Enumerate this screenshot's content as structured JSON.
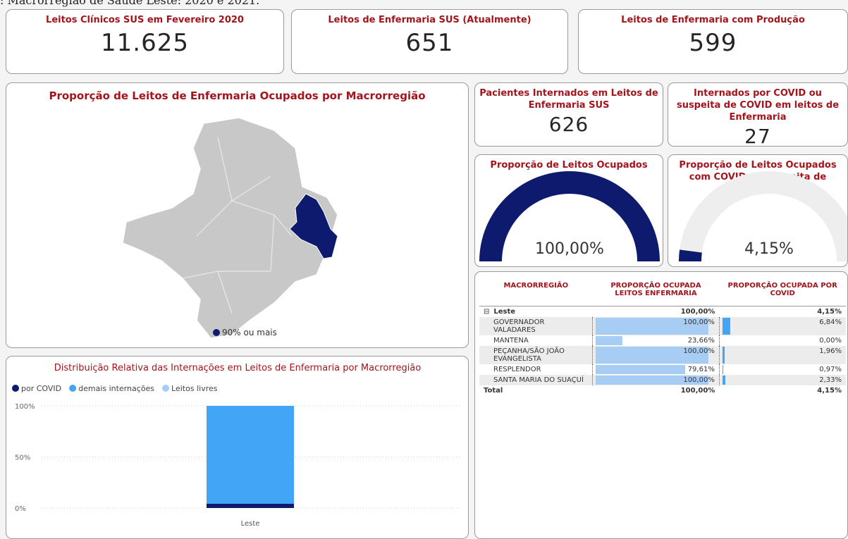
{
  "caption": ": Macrorregião de Saúde Leste: 2020 e 2021.",
  "cards": [
    {
      "title": "Leitos Clínicos SUS em Fevereiro 2020",
      "value": "11.625"
    },
    {
      "title": "Leitos de Enfermaria SUS (Atualmente)",
      "value": "651"
    },
    {
      "title": "Leitos de Enfermaria com Produção",
      "value": "599"
    },
    {
      "title": "Pacientes Internados em Leitos de Enfermaria SUS",
      "value": "626"
    },
    {
      "title": "Internados por COVID ou suspeita de COVID em leitos de Enfermaria",
      "value": "27"
    }
  ],
  "map": {
    "title": "Proporção de Leitos de Enfermaria Ocupados por Macrorregião",
    "legend": "90% ou mais",
    "color": "#0d1a6e"
  },
  "chart_data": [
    {
      "type": "gauge",
      "title": "Proporção de Leitos Ocupados",
      "value": 100,
      "value_label": "100,00%",
      "range": [
        0,
        100
      ],
      "color": "#0d1a6e",
      "track_color": "#eeeeee"
    },
    {
      "type": "gauge",
      "title": "Proporção de Leitos Ocupados com COVID ou Suspeita de COVID",
      "value": 4.15,
      "value_label": "4,15%",
      "range": [
        0,
        100
      ],
      "color": "#0d1a6e",
      "track_color": "#eeeeee"
    },
    {
      "type": "bar",
      "stacked": true,
      "title": "Distribuição Relativa das Internações em Leitos de Enfermaria por Macrorregião",
      "categories": [
        "Leste"
      ],
      "series": [
        {
          "name": "por COVID",
          "color": "#0d1a6e",
          "values": [
            4.15
          ]
        },
        {
          "name": "demais internações",
          "color": "#42a5f5",
          "values": [
            95.85
          ]
        },
        {
          "name": "Leitos livres",
          "color": "#a7cdf5",
          "values": [
            0
          ]
        }
      ],
      "ylim": [
        0,
        100
      ],
      "yticks": [
        {
          "value": 0,
          "label": "0%"
        },
        {
          "value": 50,
          "label": "50%"
        },
        {
          "value": 100,
          "label": "100%"
        }
      ],
      "grid": true
    }
  ],
  "table": {
    "headers": [
      "MACRORREGIÃO",
      "PROPORÇÃO OCUPADA LEITOS ENFERMARIA",
      "PROPORÇÃO OCUPADA POR COVID"
    ],
    "group": {
      "name": "Leste",
      "values": [
        "100,00%",
        "4,15%"
      ]
    },
    "rows": [
      {
        "name": "GOVERNADOR VALADARES",
        "values": [
          100,
          6.84
        ],
        "value_labels": [
          "100,00%",
          "6,84%"
        ]
      },
      {
        "name": "MANTENA",
        "values": [
          23.66,
          0
        ],
        "value_labels": [
          "23,66%",
          "0,00%"
        ]
      },
      {
        "name": "PEÇANHA/SÃO JOÃO EVANGELISTA",
        "values": [
          100,
          1.96
        ],
        "value_labels": [
          "100,00%",
          "1,96%"
        ]
      },
      {
        "name": "RESPLENDOR",
        "values": [
          79.61,
          0.97
        ],
        "value_labels": [
          "79,61%",
          "0,97%"
        ]
      },
      {
        "name": "SANTA MARIA DO SUAÇUÍ",
        "values": [
          100,
          2.33
        ],
        "value_labels": [
          "100,00%",
          "2,33%"
        ]
      }
    ],
    "total": {
      "name": "Total",
      "values": [
        "100,00%",
        "4,15%"
      ]
    },
    "bar_color": "#a7cdf5",
    "bar2_color": "#42a5f5"
  }
}
